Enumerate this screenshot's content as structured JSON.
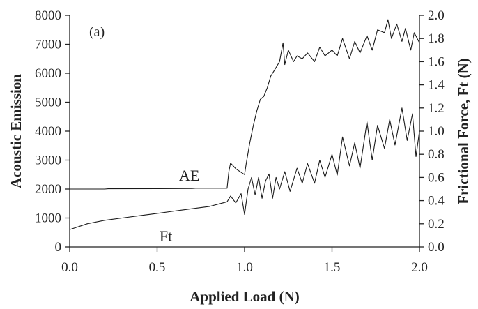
{
  "chart_data": {
    "type": "line",
    "title": "",
    "annotation": "(a)",
    "xlabel": "Applied Load (N)",
    "ylabel": "Acoustic Emission",
    "y2label": "Frictional Force, Ft (N)",
    "xlim": [
      0,
      2
    ],
    "ylim": [
      0,
      8000
    ],
    "y2lim": [
      0,
      2.0
    ],
    "x_ticks": [
      "0.0",
      "0.5",
      "1.0",
      "1.5",
      "2.0"
    ],
    "y_ticks": [
      "0",
      "1000",
      "2000",
      "3000",
      "4000",
      "5000",
      "6000",
      "7000",
      "8000"
    ],
    "y2_ticks": [
      "0.0",
      "0.2",
      "0.4",
      "0.6",
      "0.8",
      "1.0",
      "1.2",
      "1.4",
      "1.6",
      "1.8",
      "2.0"
    ],
    "grid": false,
    "series": [
      {
        "name": "AE",
        "axis": "left",
        "x": [
          0.0,
          0.2,
          0.22,
          0.5,
          0.7,
          0.72,
          0.9,
          0.91,
          0.92,
          0.95,
          1.0,
          1.01,
          1.03,
          1.05,
          1.07,
          1.09,
          1.11,
          1.13,
          1.15,
          1.17,
          1.2,
          1.22,
          1.23,
          1.25,
          1.28,
          1.3,
          1.33,
          1.36,
          1.4,
          1.43,
          1.46,
          1.5,
          1.53,
          1.56,
          1.6,
          1.63,
          1.66,
          1.7,
          1.73,
          1.76,
          1.8,
          1.82,
          1.84,
          1.87,
          1.9,
          1.92,
          1.95,
          1.97,
          2.0
        ],
        "values": [
          2000,
          2000,
          2010,
          2015,
          2020,
          2030,
          2030,
          2600,
          2900,
          2700,
          2500,
          2900,
          3600,
          4200,
          4700,
          5100,
          5200,
          5500,
          5900,
          6100,
          6400,
          7050,
          6300,
          6800,
          6400,
          6600,
          6500,
          6700,
          6400,
          6900,
          6600,
          6800,
          6600,
          7200,
          6500,
          7100,
          6700,
          7300,
          6800,
          7500,
          7400,
          7850,
          7200,
          7700,
          7100,
          7550,
          6800,
          7400,
          7050
        ]
      },
      {
        "name": "Ft",
        "axis": "right",
        "x": [
          0.0,
          0.1,
          0.2,
          0.3,
          0.4,
          0.5,
          0.6,
          0.7,
          0.8,
          0.9,
          0.92,
          0.95,
          0.98,
          1.0,
          1.02,
          1.04,
          1.06,
          1.08,
          1.1,
          1.12,
          1.14,
          1.16,
          1.18,
          1.2,
          1.23,
          1.26,
          1.3,
          1.33,
          1.36,
          1.4,
          1.43,
          1.46,
          1.5,
          1.53,
          1.56,
          1.6,
          1.63,
          1.66,
          1.7,
          1.73,
          1.76,
          1.8,
          1.83,
          1.86,
          1.9,
          1.93,
          1.96,
          1.98,
          2.0
        ],
        "values": [
          0.15,
          0.2,
          0.23,
          0.25,
          0.27,
          0.29,
          0.31,
          0.33,
          0.35,
          0.39,
          0.44,
          0.38,
          0.46,
          0.28,
          0.5,
          0.6,
          0.45,
          0.6,
          0.42,
          0.57,
          0.63,
          0.42,
          0.6,
          0.5,
          0.65,
          0.48,
          0.68,
          0.55,
          0.72,
          0.55,
          0.75,
          0.6,
          0.8,
          0.62,
          0.95,
          0.7,
          0.9,
          0.68,
          1.08,
          0.75,
          1.05,
          0.85,
          1.1,
          0.88,
          1.2,
          0.92,
          1.15,
          0.78,
          1.0
        ]
      }
    ]
  }
}
